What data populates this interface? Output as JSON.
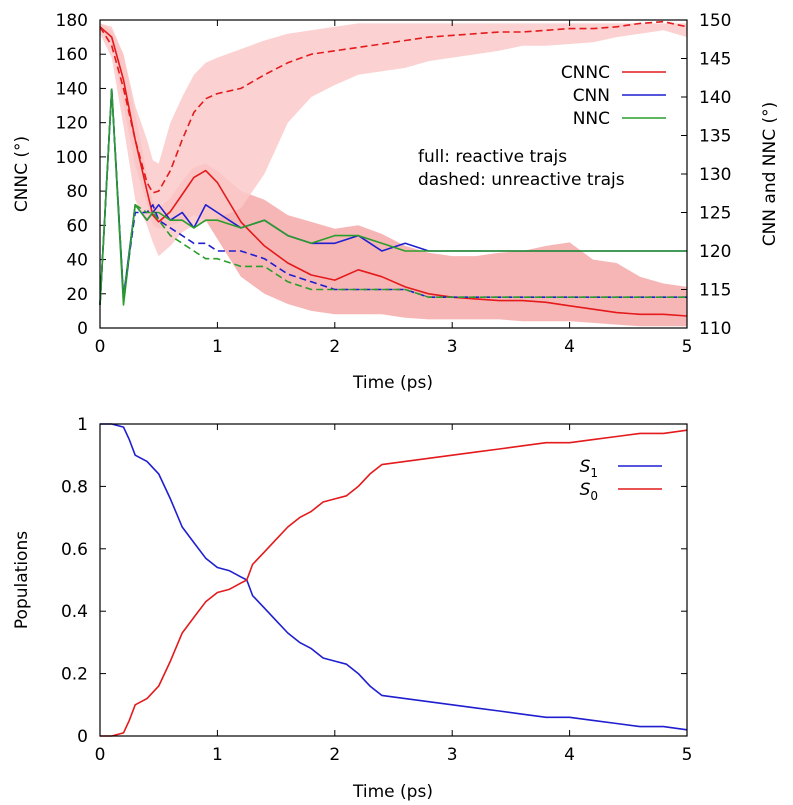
{
  "colors": {
    "red": "#e41a1c",
    "blue": "#1f1fd0",
    "green": "#2a9d2a",
    "band_dark": "#f6a9a9",
    "band_light": "#fbc9c9"
  },
  "chart_data": [
    {
      "type": "line",
      "xlabel": "Time (ps)",
      "ylabel": "CNNC (°)",
      "y2label": "CNN and NNC (°)",
      "xlim": [
        0,
        5
      ],
      "ylim": [
        0,
        180
      ],
      "y2lim": [
        110,
        150
      ],
      "xticks": [
        "0",
        "1",
        "2",
        "3",
        "4",
        "5"
      ],
      "yticks": [
        "0",
        "20",
        "40",
        "60",
        "80",
        "100",
        "120",
        "140",
        "160",
        "180"
      ],
      "y2ticks": [
        "110",
        "115",
        "120",
        "125",
        "130",
        "135",
        "140",
        "145",
        "150"
      ],
      "legend_position": "top-right",
      "legend": [
        "CNNC",
        "CNN",
        "NNC"
      ],
      "annotations": [
        "full: reactive trajs",
        "dashed: unreactive trajs"
      ],
      "x": [
        0,
        0.1,
        0.2,
        0.3,
        0.4,
        0.45,
        0.5,
        0.6,
        0.7,
        0.8,
        0.9,
        1.0,
        1.2,
        1.4,
        1.6,
        1.8,
        2.0,
        2.2,
        2.4,
        2.6,
        2.8,
        3.0,
        3.2,
        3.4,
        3.6,
        3.8,
        4.0,
        4.2,
        4.4,
        4.6,
        4.8,
        5.0
      ],
      "series": [
        {
          "name": "CNNC",
          "axis": "left",
          "style": "solid",
          "color": "red",
          "values": [
            176,
            170,
            145,
            110,
            80,
            66,
            62,
            68,
            78,
            88,
            92,
            85,
            62,
            48,
            38,
            31,
            28,
            34,
            30,
            24,
            20,
            18,
            17,
            16,
            16,
            15,
            13,
            11,
            9,
            8,
            8,
            7
          ]
        },
        {
          "name": "CNNC (unreactive)",
          "axis": "left",
          "style": "dashed",
          "color": "red",
          "values": [
            176,
            165,
            140,
            110,
            85,
            79,
            80,
            92,
            110,
            126,
            134,
            137,
            140,
            148,
            155,
            160,
            162,
            164,
            166,
            168,
            170,
            171,
            172,
            173,
            173,
            174,
            175,
            175,
            176,
            178,
            179,
            176
          ]
        },
        {
          "name": "CNN",
          "axis": "right",
          "style": "solid",
          "color": "blue",
          "values": [
            113,
            141,
            114,
            126,
            124,
            125,
            126,
            124,
            125,
            123,
            126,
            125,
            123,
            124,
            122,
            121,
            121,
            122,
            120,
            121,
            120,
            120,
            120,
            120,
            120,
            120,
            120,
            120,
            120,
            120,
            120,
            120
          ]
        },
        {
          "name": "NNC",
          "axis": "right",
          "style": "solid",
          "color": "green",
          "values": [
            113,
            141,
            113,
            126,
            124,
            125,
            125,
            124,
            124,
            123,
            124,
            124,
            123,
            124,
            122,
            121,
            122,
            122,
            121,
            120,
            120,
            120,
            120,
            120,
            120,
            120,
            120,
            120,
            120,
            120,
            120,
            120
          ]
        },
        {
          "name": "CNN (unreactive)",
          "axis": "right",
          "style": "dashed",
          "color": "blue",
          "values": [
            113,
            141,
            114,
            125,
            125,
            126,
            124,
            123,
            122,
            121,
            121,
            120,
            120,
            119,
            117,
            116,
            115,
            115,
            115,
            115,
            114,
            114,
            114,
            114,
            114,
            114,
            114,
            114,
            114,
            114,
            114,
            114
          ]
        },
        {
          "name": "NNC (unreactive)",
          "axis": "right",
          "style": "dashed",
          "color": "green",
          "values": [
            113,
            141,
            114,
            126,
            125,
            125,
            124,
            122,
            121,
            120,
            119,
            119,
            118,
            118,
            116,
            115,
            115,
            115,
            115,
            115,
            114,
            114,
            114,
            114,
            114,
            114,
            114,
            114,
            114,
            114,
            114,
            114
          ]
        }
      ],
      "bands": [
        {
          "axis": "left",
          "color": "band_dark",
          "lower": [
            174,
            166,
            130,
            95,
            72,
            60,
            58,
            60,
            62,
            66,
            63,
            52,
            30,
            20,
            14,
            10,
            8,
            8,
            8,
            6,
            5,
            5,
            5,
            5,
            4,
            4,
            4,
            3,
            2,
            1,
            1,
            1
          ],
          "upper": [
            178,
            174,
            160,
            125,
            90,
            74,
            70,
            76,
            86,
            94,
            96,
            92,
            80,
            75,
            66,
            62,
            58,
            60,
            55,
            48,
            44,
            42,
            42,
            44,
            45,
            48,
            50,
            40,
            38,
            30,
            26,
            24
          ]
        },
        {
          "axis": "left",
          "color": "band_light",
          "lower": [
            172,
            158,
            118,
            75,
            60,
            50,
            42,
            48,
            56,
            60,
            62,
            64,
            70,
            90,
            120,
            135,
            142,
            148,
            150,
            152,
            156,
            158,
            160,
            162,
            165,
            165,
            166,
            167,
            170,
            172,
            174,
            170
          ],
          "upper": [
            178,
            176,
            160,
            130,
            110,
            98,
            96,
            120,
            135,
            148,
            155,
            158,
            163,
            168,
            172,
            174,
            176,
            178,
            178,
            178,
            178,
            178,
            178,
            178,
            178,
            178,
            178,
            178,
            178,
            178,
            178,
            178
          ]
        }
      ]
    },
    {
      "type": "line",
      "xlabel": "Time (ps)",
      "ylabel": "Populations",
      "xlim": [
        0,
        5
      ],
      "ylim": [
        0,
        1
      ],
      "xticks": [
        "0",
        "1",
        "2",
        "3",
        "4",
        "5"
      ],
      "yticks": [
        "0",
        "0.2",
        "0.4",
        "0.6",
        "0.8",
        "1"
      ],
      "legend_position": "top-right",
      "legend": [
        {
          "base": "S",
          "sub": "1"
        },
        {
          "base": "S",
          "sub": "0"
        }
      ],
      "x": [
        0,
        0.1,
        0.2,
        0.25,
        0.3,
        0.4,
        0.5,
        0.6,
        0.7,
        0.8,
        0.9,
        1.0,
        1.1,
        1.2,
        1.25,
        1.3,
        1.4,
        1.5,
        1.6,
        1.7,
        1.8,
        1.9,
        2.0,
        2.1,
        2.2,
        2.3,
        2.4,
        2.6,
        2.8,
        3.0,
        3.2,
        3.4,
        3.6,
        3.8,
        4.0,
        4.2,
        4.4,
        4.6,
        4.8,
        5.0
      ],
      "series": [
        {
          "name": "S1",
          "color": "blue",
          "values": [
            1.0,
            1.0,
            0.99,
            0.95,
            0.9,
            0.88,
            0.84,
            0.76,
            0.67,
            0.62,
            0.57,
            0.54,
            0.53,
            0.51,
            0.5,
            0.45,
            0.41,
            0.37,
            0.33,
            0.3,
            0.28,
            0.25,
            0.24,
            0.23,
            0.2,
            0.16,
            0.13,
            0.12,
            0.11,
            0.1,
            0.09,
            0.08,
            0.07,
            0.06,
            0.06,
            0.05,
            0.04,
            0.03,
            0.03,
            0.02
          ]
        },
        {
          "name": "S0",
          "color": "red",
          "values": [
            0.0,
            0.0,
            0.01,
            0.05,
            0.1,
            0.12,
            0.16,
            0.24,
            0.33,
            0.38,
            0.43,
            0.46,
            0.47,
            0.49,
            0.5,
            0.55,
            0.59,
            0.63,
            0.67,
            0.7,
            0.72,
            0.75,
            0.76,
            0.77,
            0.8,
            0.84,
            0.87,
            0.88,
            0.89,
            0.9,
            0.91,
            0.92,
            0.93,
            0.94,
            0.94,
            0.95,
            0.96,
            0.97,
            0.97,
            0.98
          ]
        }
      ]
    }
  ]
}
